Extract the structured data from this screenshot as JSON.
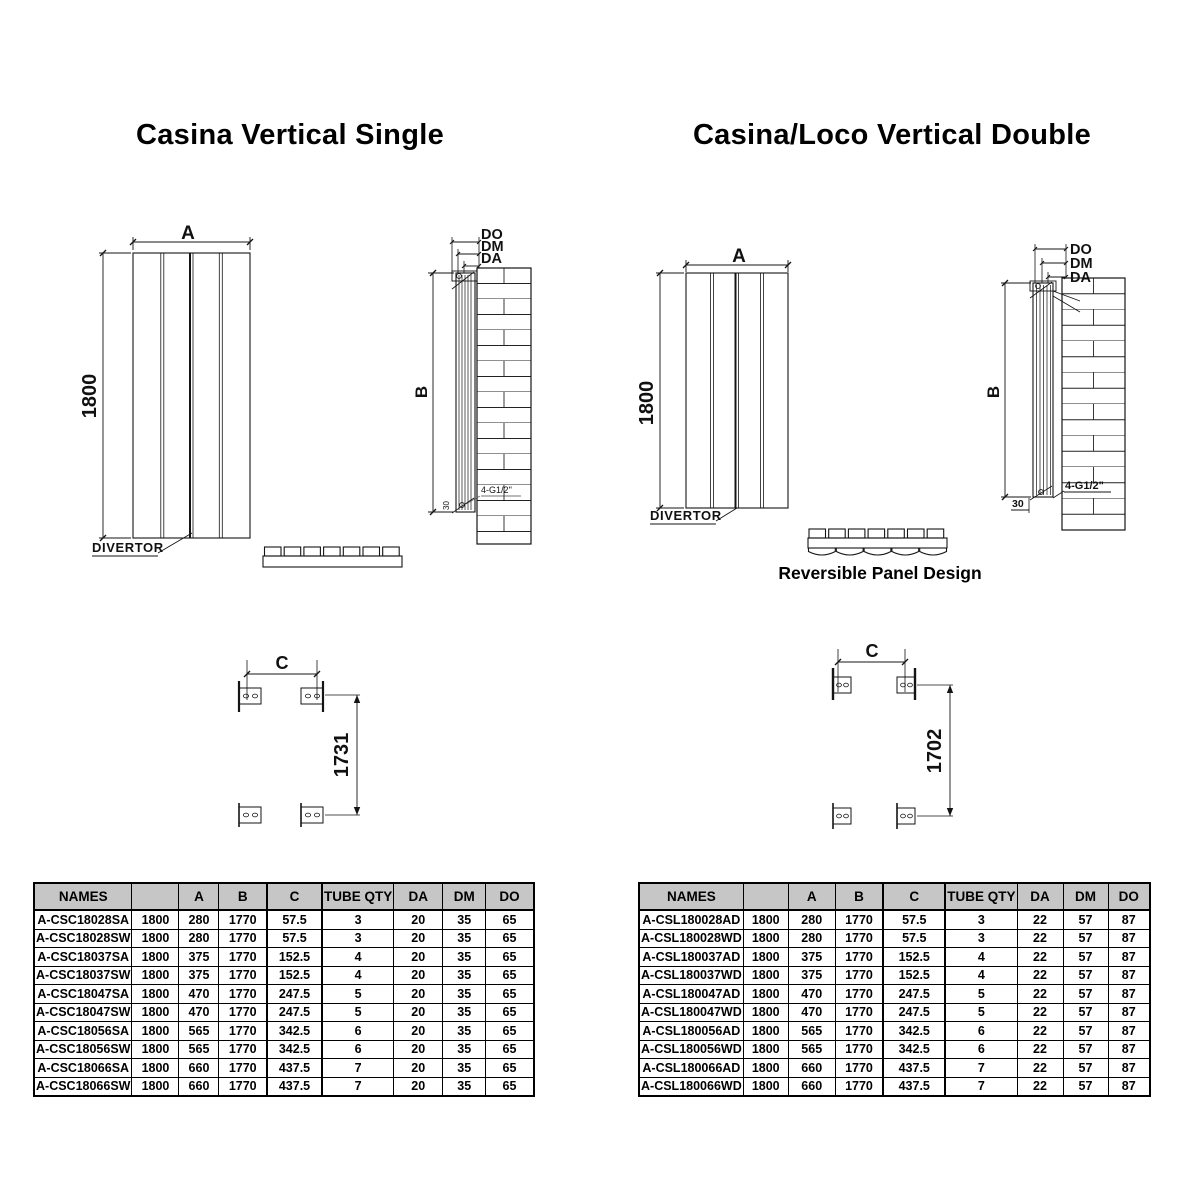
{
  "titles": {
    "single": "Casina Vertical Single",
    "double": "Casina/Loco Vertical Double"
  },
  "note": {
    "reversible_panel": "Reversible Panel Design"
  },
  "diagrams": {
    "single": {
      "front": {
        "width": "A",
        "height": "1800",
        "divertor": "DIVERTOR"
      },
      "side": {
        "do": "DO",
        "dm": "DM",
        "da": "DA",
        "height": "B",
        "connections": "4-G1/2''",
        "wall_offset": "30"
      },
      "brackets": {
        "spacing": "C",
        "pitch": "1731"
      }
    },
    "double": {
      "front": {
        "width": "A",
        "height": "1800",
        "divertor": "DIVERTOR"
      },
      "side": {
        "do": "DO",
        "dm": "DM",
        "da": "DA",
        "height": "B",
        "connections": "4-G1/2\"",
        "wall_offset": "30"
      },
      "brackets": {
        "spacing": "C",
        "pitch": "1702"
      }
    }
  },
  "tables": {
    "single": {
      "headers": [
        "NAMES",
        "",
        "A",
        "B",
        "C",
        "TUBE QTY",
        "DA",
        "DM",
        "DO"
      ],
      "rows": [
        [
          "A-CSC18028SA",
          "1800",
          "280",
          "1770",
          "57.5",
          "3",
          "20",
          "35",
          "65"
        ],
        [
          "A-CSC18028SW",
          "1800",
          "280",
          "1770",
          "57.5",
          "3",
          "20",
          "35",
          "65"
        ],
        [
          "A-CSC18037SA",
          "1800",
          "375",
          "1770",
          "152.5",
          "4",
          "20",
          "35",
          "65"
        ],
        [
          "A-CSC18037SW",
          "1800",
          "375",
          "1770",
          "152.5",
          "4",
          "20",
          "35",
          "65"
        ],
        [
          "A-CSC18047SA",
          "1800",
          "470",
          "1770",
          "247.5",
          "5",
          "20",
          "35",
          "65"
        ],
        [
          "A-CSC18047SW",
          "1800",
          "470",
          "1770",
          "247.5",
          "5",
          "20",
          "35",
          "65"
        ],
        [
          "A-CSC18056SA",
          "1800",
          "565",
          "1770",
          "342.5",
          "6",
          "20",
          "35",
          "65"
        ],
        [
          "A-CSC18056SW",
          "1800",
          "565",
          "1770",
          "342.5",
          "6",
          "20",
          "35",
          "65"
        ],
        [
          "A-CSC18066SA",
          "1800",
          "660",
          "1770",
          "437.5",
          "7",
          "20",
          "35",
          "65"
        ],
        [
          "A-CSC18066SW",
          "1800",
          "660",
          "1770",
          "437.5",
          "7",
          "20",
          "35",
          "65"
        ]
      ]
    },
    "double": {
      "headers": [
        "NAMES",
        "",
        "A",
        "B",
        "C",
        "TUBE QTY",
        "DA",
        "DM",
        "DO"
      ],
      "rows": [
        [
          "A-CSL180028AD",
          "1800",
          "280",
          "1770",
          "57.5",
          "3",
          "22",
          "57",
          "87"
        ],
        [
          "A-CSL180028WD",
          "1800",
          "280",
          "1770",
          "57.5",
          "3",
          "22",
          "57",
          "87"
        ],
        [
          "A-CSL180037AD",
          "1800",
          "375",
          "1770",
          "152.5",
          "4",
          "22",
          "57",
          "87"
        ],
        [
          "A-CSL180037WD",
          "1800",
          "375",
          "1770",
          "152.5",
          "4",
          "22",
          "57",
          "87"
        ],
        [
          "A-CSL180047AD",
          "1800",
          "470",
          "1770",
          "247.5",
          "5",
          "22",
          "57",
          "87"
        ],
        [
          "A-CSL180047WD",
          "1800",
          "470",
          "1770",
          "247.5",
          "5",
          "22",
          "57",
          "87"
        ],
        [
          "A-CSL180056AD",
          "1800",
          "565",
          "1770",
          "342.5",
          "6",
          "22",
          "57",
          "87"
        ],
        [
          "A-CSL180056WD",
          "1800",
          "565",
          "1770",
          "342.5",
          "6",
          "22",
          "57",
          "87"
        ],
        [
          "A-CSL180066AD",
          "1800",
          "660",
          "1770",
          "437.5",
          "7",
          "22",
          "57",
          "87"
        ],
        [
          "A-CSL180066WD",
          "1800",
          "660",
          "1770",
          "437.5",
          "7",
          "22",
          "57",
          "87"
        ]
      ]
    }
  }
}
